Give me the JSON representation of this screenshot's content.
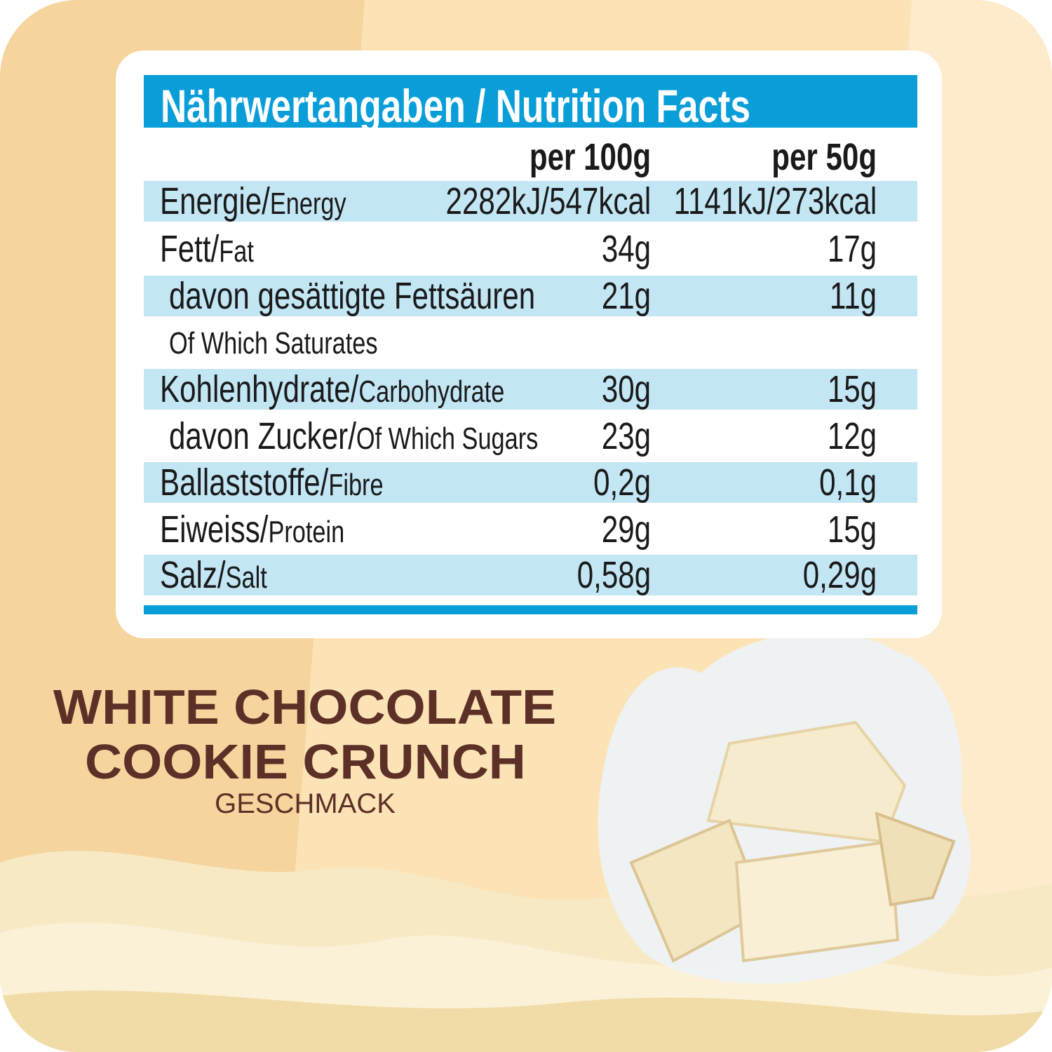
{
  "table": {
    "title": "Nährwertangaben / Nutrition Facts",
    "columns": [
      "per 100g",
      "per 50g"
    ],
    "rows": [
      {
        "label_de": "Energie/",
        "label_en": "Energy",
        "per100": "2282kJ/547kcal",
        "per50": "1141kJ/273kcal"
      },
      {
        "label_de": "Fett/",
        "label_en": "Fat",
        "per100": "34g",
        "per50": "17g"
      },
      {
        "label_de": "davon gesättigte Fettsäuren",
        "label_en": "",
        "per100": "21g",
        "per50": "11g"
      },
      {
        "label_de": "Of Which Saturates",
        "label_en": "",
        "per100": "",
        "per50": ""
      },
      {
        "label_de": "Kohlenhydrate/",
        "label_en": "Carbohydrate",
        "per100": "30g",
        "per50": "15g"
      },
      {
        "label_de": "davon Zucker/",
        "label_en": "Of Which Sugars",
        "per100": "23g",
        "per50": "12g"
      },
      {
        "label_de": "Ballaststoffe/",
        "label_en": "Fibre",
        "per100": "0,2g",
        "per50": "0,1g"
      },
      {
        "label_de": "Eiweiss/",
        "label_en": "Protein",
        "per100": "29g",
        "per50": "15g"
      },
      {
        "label_de": "Salz/",
        "label_en": "Salt",
        "per100": "0,58g",
        "per50": "0,29g"
      }
    ]
  },
  "product": {
    "line1": "WHITE CHOCOLATE",
    "line2": "COOKIE CRUNCH",
    "subtitle": "GESCHMACK"
  },
  "colors": {
    "accent": "#0a9ed9",
    "row_stripe": "#c3e6f5",
    "brand_text": "#5c3026",
    "background": "#fbe3b6"
  }
}
